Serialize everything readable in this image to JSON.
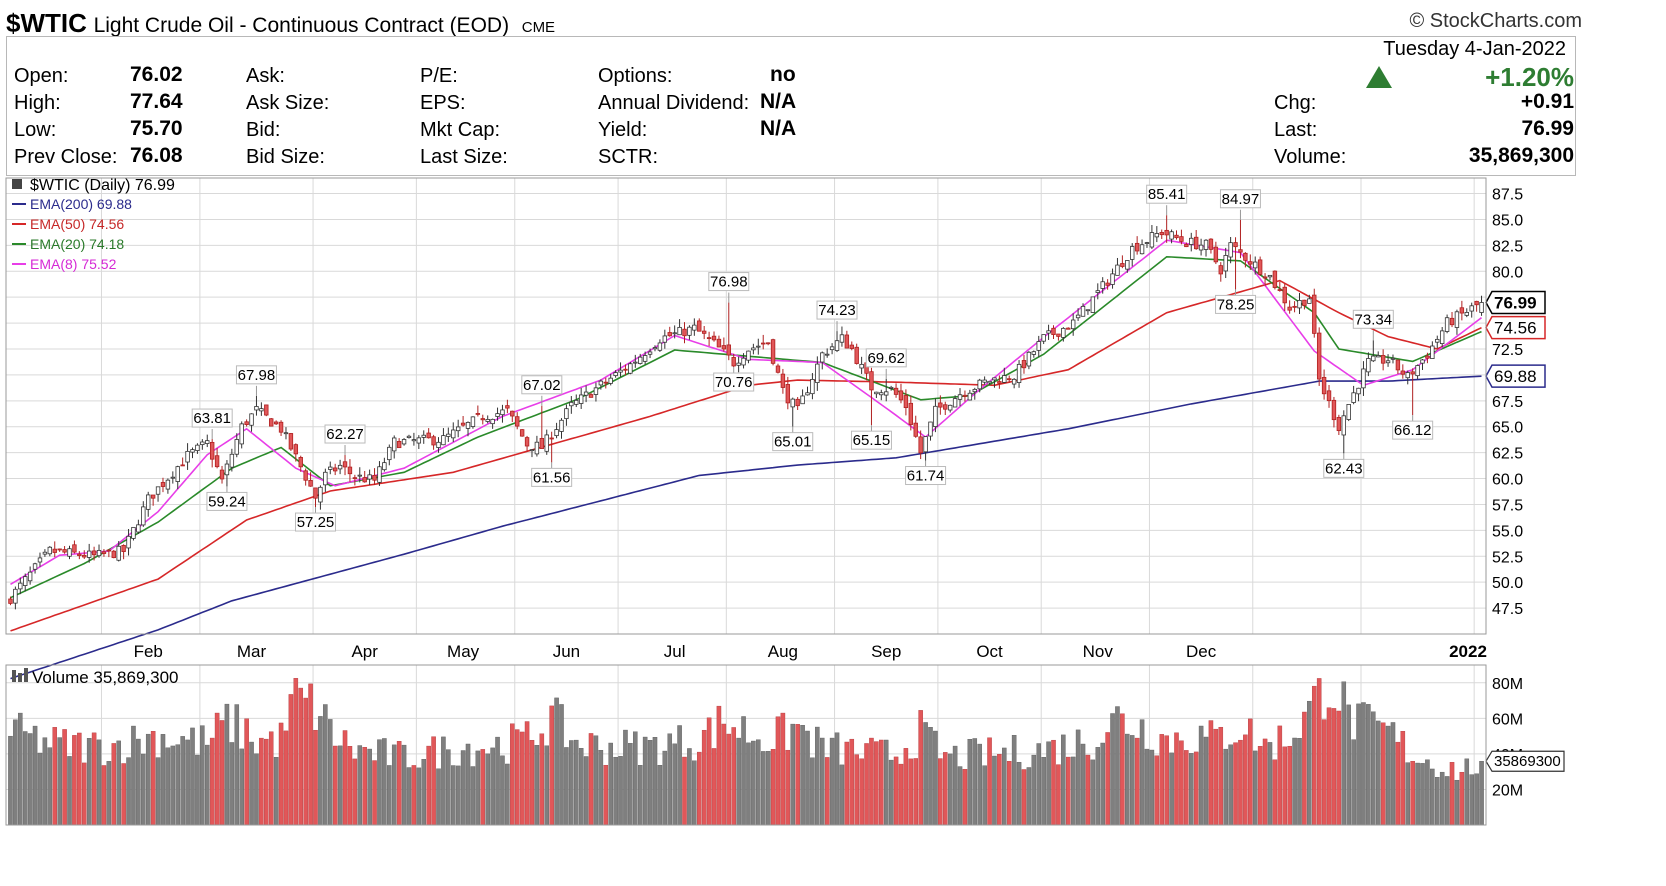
{
  "header": {
    "symbol": "$WTIC",
    "name": "Light Crude Oil - Continuous Contract (EOD)",
    "exchange": "CME",
    "brand": "© StockCharts.com"
  },
  "quote": {
    "open_label": "Open:",
    "open": "76.02",
    "high_label": "High:",
    "high": "77.64",
    "low_label": "Low:",
    "low": "75.70",
    "prev_label": "Prev Close:",
    "prev": "76.08",
    "ask_label": "Ask:",
    "asksize_label": "Ask Size:",
    "bid_label": "Bid:",
    "bidsize_label": "Bid Size:",
    "pe_label": "P/E:",
    "eps_label": "EPS:",
    "mktcap_label": "Mkt Cap:",
    "lastsize_label": "Last Size:",
    "options_label": "Options:",
    "options": "no",
    "div_label": "Annual Dividend:",
    "div": "N/A",
    "yield_label": "Yield:",
    "yield": "N/A",
    "sctr_label": "SCTR:",
    "date": "Tuesday  4-Jan-2022",
    "pct": "+1.20%",
    "chg_label": "Chg:",
    "chg": "+0.91",
    "last_label": "Last:",
    "last": "76.99",
    "volume_label": "Volume:",
    "volume": "35,869,300"
  },
  "colors": {
    "up": "#7f7f7f",
    "down": "#e15759",
    "ema200": "#2b2b8c",
    "ema50": "#d62728",
    "ema20": "#2a8a2a",
    "ema8": "#e83ee8",
    "grid": "#d9d9d9",
    "change": "#2e7d32"
  },
  "chart_data": [
    {
      "type": "candlestick",
      "legend": {
        "main": "$WTIC (Daily) 76.99",
        "ema200": "EMA(200) 69.88",
        "ema50": "EMA(50) 74.56",
        "ema20": "EMA(20) 74.18",
        "ema8": "EMA(8) 75.52"
      },
      "ylim": [
        45,
        89
      ],
      "y_ticks": [
        "87.5",
        "85.0",
        "82.5",
        "80.0",
        "77.5",
        "75.0",
        "72.5",
        "70.0",
        "67.5",
        "65.0",
        "62.5",
        "60.0",
        "57.5",
        "55.0",
        "52.5",
        "50.0",
        "47.5"
      ],
      "x_ticks": [
        "Feb",
        "Mar",
        "Apr",
        "May",
        "Jun",
        "Jul",
        "Aug",
        "Sep",
        "Oct",
        "Nov",
        "Dec",
        "2022"
      ],
      "price_tags": [
        "76.99",
        "74.56",
        "69.88"
      ],
      "close_anchors": [
        [
          0,
          48.5
        ],
        [
          8,
          53
        ],
        [
          17,
          52.5
        ],
        [
          23,
          53
        ],
        [
          28,
          58
        ],
        [
          36,
          62.2
        ],
        [
          40,
          63.4
        ],
        [
          43,
          59.8
        ],
        [
          47,
          65
        ],
        [
          50,
          66.6
        ],
        [
          55,
          64.8
        ],
        [
          60,
          60.2
        ],
        [
          62,
          58.2
        ],
        [
          64,
          60.3
        ],
        [
          67,
          61.2
        ],
        [
          70,
          60.2
        ],
        [
          74,
          59.8
        ],
        [
          78,
          63.5
        ],
        [
          88,
          63.8
        ],
        [
          96,
          66
        ],
        [
          101,
          66.5
        ],
        [
          105,
          63.3
        ],
        [
          108,
          63
        ],
        [
          114,
          67
        ],
        [
          120,
          69
        ],
        [
          126,
          71
        ],
        [
          132,
          73.5
        ],
        [
          139,
          74.5
        ],
        [
          143,
          73
        ],
        [
          147,
          71.2
        ],
        [
          150,
          72.5
        ],
        [
          154,
          73.2
        ],
        [
          157,
          68.5
        ],
        [
          160,
          66.5
        ],
        [
          165,
          72
        ],
        [
          169,
          73.5
        ],
        [
          171,
          72.5
        ],
        [
          175,
          68.8
        ],
        [
          179,
          68.6
        ],
        [
          182,
          67
        ],
        [
          185,
          62.5
        ],
        [
          188,
          66.5
        ],
        [
          193,
          68.2
        ],
        [
          199,
          69.5
        ],
        [
          204,
          69.9
        ],
        [
          210,
          73.5
        ],
        [
          216,
          75
        ],
        [
          222,
          78.5
        ],
        [
          228,
          82.2
        ],
        [
          234,
          83.8
        ],
        [
          239,
          82.8
        ],
        [
          243,
          82.5
        ],
        [
          246,
          80.2
        ],
        [
          248,
          82.5
        ],
        [
          252,
          81
        ],
        [
          256,
          79.5
        ],
        [
          260,
          76.5
        ],
        [
          264,
          77.5
        ],
        [
          266,
          69.5
        ],
        [
          270,
          65
        ],
        [
          272,
          67.2
        ],
        [
          276,
          71.2
        ],
        [
          280,
          71.5
        ],
        [
          284,
          69.8
        ],
        [
          288,
          72
        ],
        [
          292,
          75
        ],
        [
          297,
          76.4
        ],
        [
          299,
          76.99
        ]
      ],
      "ema_anchors": {
        "ema200": [
          [
            0,
            40.7
          ],
          [
            30,
            45.4
          ],
          [
            45,
            48.2
          ],
          [
            80,
            52.7
          ],
          [
            100,
            55.4
          ],
          [
            140,
            60.3
          ],
          [
            160,
            61.3
          ],
          [
            180,
            62
          ],
          [
            200,
            63.6
          ],
          [
            215,
            64.8
          ],
          [
            240,
            67.2
          ],
          [
            266,
            69.4
          ],
          [
            280,
            69.4
          ],
          [
            299,
            69.88
          ]
        ],
        "ema50": [
          [
            0,
            45.3
          ],
          [
            30,
            50.3
          ],
          [
            48,
            56
          ],
          [
            65,
            58.8
          ],
          [
            90,
            60.6
          ],
          [
            130,
            66
          ],
          [
            150,
            69
          ],
          [
            160,
            69.5
          ],
          [
            180,
            69.3
          ],
          [
            200,
            69
          ],
          [
            215,
            70.5
          ],
          [
            235,
            76
          ],
          [
            258,
            79.1
          ],
          [
            270,
            76
          ],
          [
            280,
            73.7
          ],
          [
            290,
            72.5
          ],
          [
            299,
            74.56
          ]
        ],
        "ema20": [
          [
            0,
            48.5
          ],
          [
            15,
            51.8
          ],
          [
            30,
            55.8
          ],
          [
            45,
            61
          ],
          [
            55,
            63
          ],
          [
            65,
            59.3
          ],
          [
            80,
            60.6
          ],
          [
            95,
            64
          ],
          [
            115,
            67.6
          ],
          [
            135,
            72.4
          ],
          [
            150,
            71.8
          ],
          [
            165,
            71.2
          ],
          [
            185,
            67.6
          ],
          [
            195,
            68
          ],
          [
            210,
            72
          ],
          [
            235,
            81.4
          ],
          [
            250,
            81
          ],
          [
            265,
            76
          ],
          [
            270,
            72.5
          ],
          [
            285,
            71.3
          ],
          [
            299,
            74.18
          ]
        ],
        "ema8": [
          [
            0,
            49.8
          ],
          [
            10,
            52.6
          ],
          [
            20,
            53
          ],
          [
            30,
            56.8
          ],
          [
            40,
            62.3
          ],
          [
            48,
            64.8
          ],
          [
            58,
            61
          ],
          [
            66,
            59.3
          ],
          [
            80,
            61
          ],
          [
            100,
            66
          ],
          [
            120,
            69.5
          ],
          [
            135,
            73.8
          ],
          [
            150,
            71.5
          ],
          [
            165,
            71.2
          ],
          [
            178,
            66.8
          ],
          [
            186,
            64
          ],
          [
            196,
            68.2
          ],
          [
            212,
            74.4
          ],
          [
            235,
            83
          ],
          [
            250,
            81.8
          ],
          [
            265,
            72.3
          ],
          [
            275,
            69
          ],
          [
            285,
            70.5
          ],
          [
            299,
            75.52
          ]
        ]
      },
      "annotations": [
        {
          "label": "67.98",
          "i": 50,
          "price": 67.98,
          "pos": "above"
        },
        {
          "label": "63.81",
          "i": 41,
          "price": 63.81,
          "pos": "above"
        },
        {
          "label": "62.27",
          "i": 68,
          "price": 62.27,
          "pos": "above"
        },
        {
          "label": "67.02",
          "i": 108,
          "price": 67.02,
          "pos": "above"
        },
        {
          "label": "76.98",
          "i": 146,
          "price": 76.98,
          "pos": "above"
        },
        {
          "label": "74.23",
          "i": 168,
          "price": 74.23,
          "pos": "above"
        },
        {
          "label": "69.62",
          "i": 178,
          "price": 69.62,
          "pos": "above"
        },
        {
          "label": "85.41",
          "i": 235,
          "price": 85.41,
          "pos": "above"
        },
        {
          "label": "84.97",
          "i": 250,
          "price": 84.97,
          "pos": "above"
        },
        {
          "label": "73.34",
          "i": 277,
          "price": 73.34,
          "pos": "above"
        },
        {
          "label": "59.24",
          "i": 44,
          "price": 59.24,
          "pos": "below"
        },
        {
          "label": "57.25",
          "i": 62,
          "price": 57.25,
          "pos": "below"
        },
        {
          "label": "61.56",
          "i": 110,
          "price": 61.56,
          "pos": "below"
        },
        {
          "label": "70.76",
          "i": 147,
          "price": 70.76,
          "pos": "below"
        },
        {
          "label": "65.01",
          "i": 159,
          "price": 65.01,
          "pos": "below"
        },
        {
          "label": "65.15",
          "i": 175,
          "price": 65.15,
          "pos": "below"
        },
        {
          "label": "61.74",
          "i": 186,
          "price": 61.74,
          "pos": "below"
        },
        {
          "label": "78.25",
          "i": 249,
          "price": 78.25,
          "pos": "below"
        },
        {
          "label": "62.43",
          "i": 271,
          "price": 62.43,
          "pos": "below"
        },
        {
          "label": "66.12",
          "i": 285,
          "price": 66.12,
          "pos": "below"
        }
      ]
    },
    {
      "type": "bar",
      "legend": "Volume 35,869,300",
      "ylim": [
        0,
        90
      ],
      "y_ticks": [
        "80M",
        "60M",
        "40M",
        "20M"
      ],
      "last_tag": "35869300",
      "volume_anchors_millions": [
        [
          0,
          52
        ],
        [
          10,
          45
        ],
        [
          20,
          44
        ],
        [
          30,
          50
        ],
        [
          40,
          46
        ],
        [
          44,
          58
        ],
        [
          48,
          52
        ],
        [
          50,
          47
        ],
        [
          55,
          48
        ],
        [
          58,
          72
        ],
        [
          62,
          65
        ],
        [
          66,
          50
        ],
        [
          70,
          42
        ],
        [
          80,
          38
        ],
        [
          90,
          43
        ],
        [
          100,
          45
        ],
        [
          105,
          48
        ],
        [
          110,
          60
        ],
        [
          115,
          46
        ],
        [
          120,
          44
        ],
        [
          130,
          44
        ],
        [
          140,
          48
        ],
        [
          145,
          58
        ],
        [
          150,
          52
        ],
        [
          155,
          48
        ],
        [
          160,
          55
        ],
        [
          165,
          43
        ],
        [
          170,
          42
        ],
        [
          175,
          40
        ],
        [
          180,
          40
        ],
        [
          185,
          52
        ],
        [
          190,
          38
        ],
        [
          200,
          40
        ],
        [
          210,
          42
        ],
        [
          220,
          48
        ],
        [
          225,
          60
        ],
        [
          230,
          55
        ],
        [
          235,
          48
        ],
        [
          240,
          50
        ],
        [
          245,
          48
        ],
        [
          250,
          56
        ],
        [
          255,
          44
        ],
        [
          260,
          50
        ],
        [
          265,
          68
        ],
        [
          268,
          82
        ],
        [
          270,
          74
        ],
        [
          272,
          60
        ],
        [
          275,
          56
        ],
        [
          280,
          52
        ],
        [
          285,
          40
        ],
        [
          290,
          34
        ],
        [
          295,
          30
        ],
        [
          299,
          36
        ]
      ]
    }
  ]
}
